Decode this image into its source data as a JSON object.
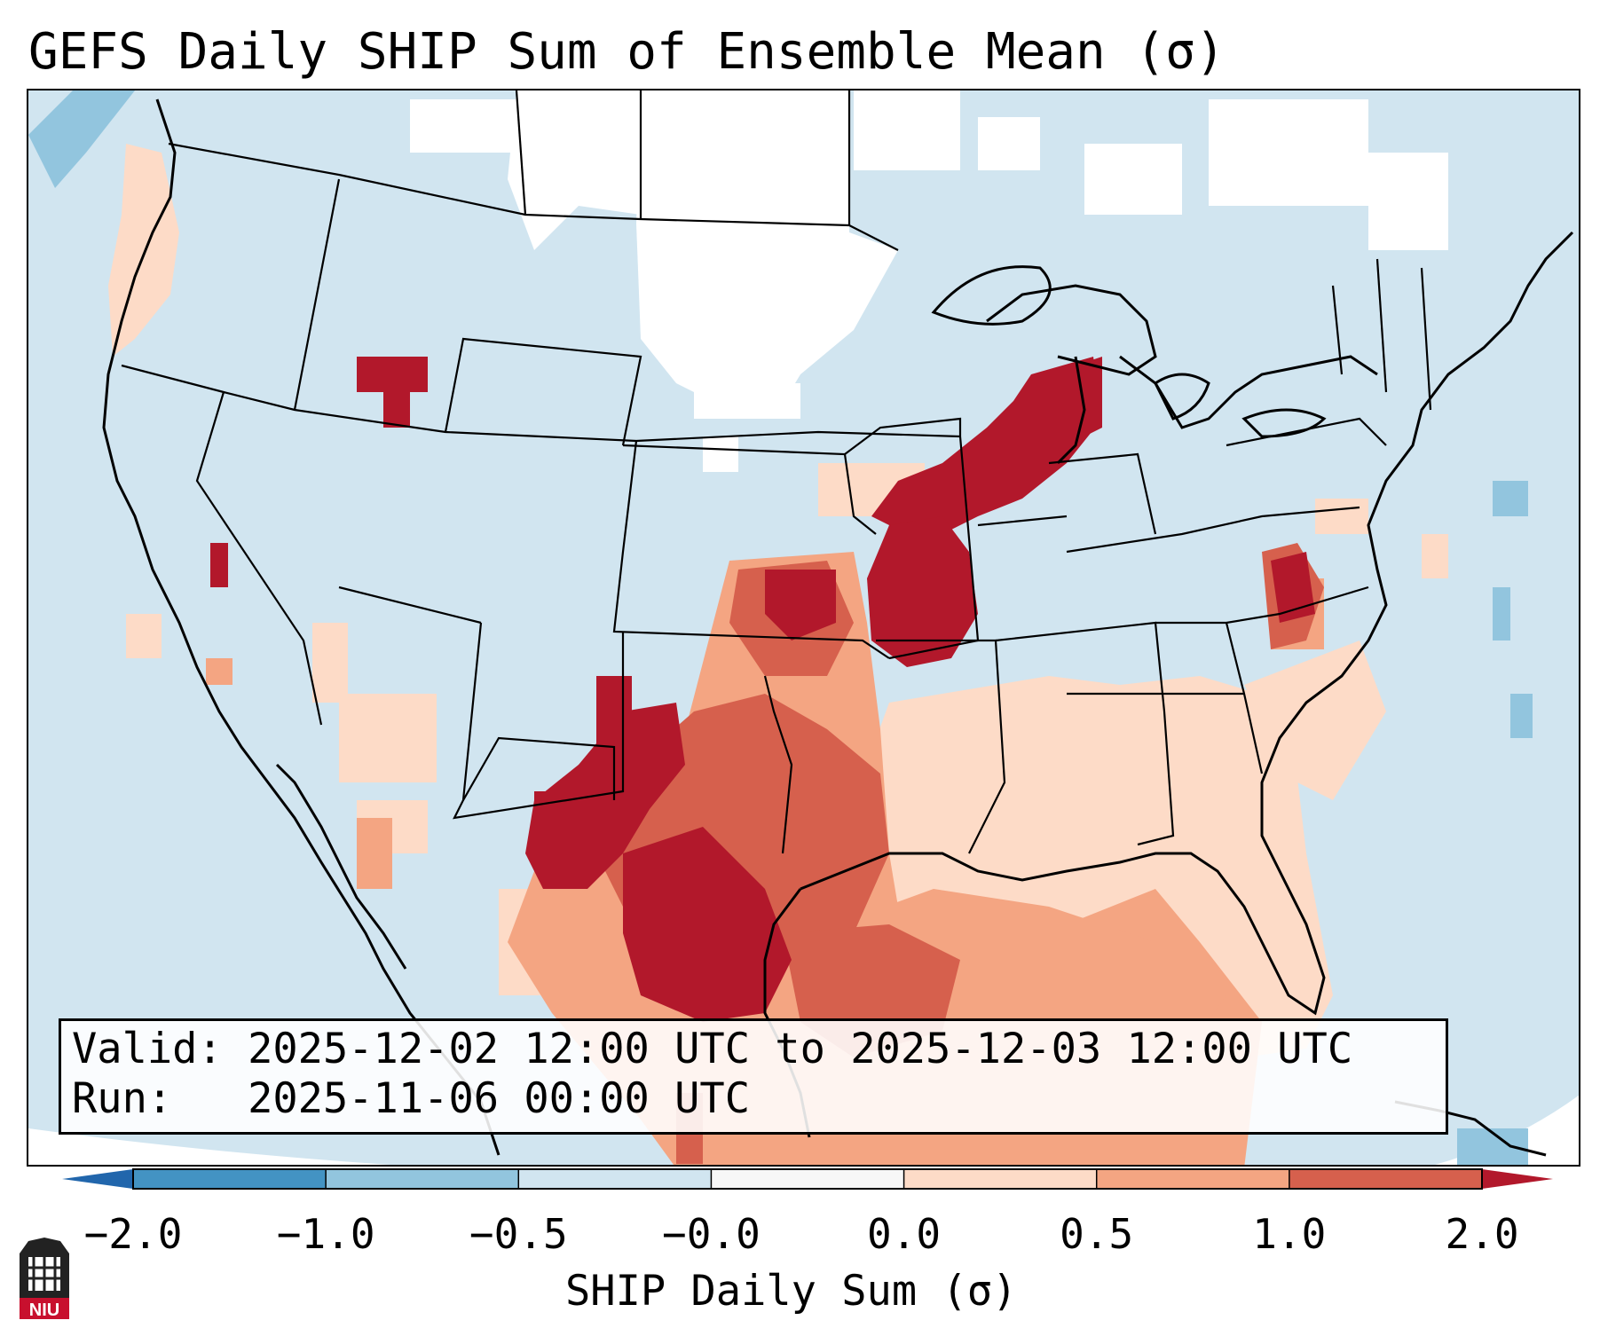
{
  "title": "GEFS Daily SHIP Sum of Ensemble Mean (σ)",
  "info": {
    "valid_label": "Valid:",
    "valid_value": "2025-12-02 12:00 UTC to 2025-12-03 12:00 UTC",
    "run_label": "Run:",
    "run_value": "2025-11-06 00:00 UTC"
  },
  "colorbar": {
    "label": "SHIP Daily Sum (σ)",
    "ticks": [
      "−2.0",
      "−1.0",
      "−0.5",
      "−0.0",
      "0.0",
      "0.5",
      "1.0",
      "2.0"
    ],
    "colors": [
      "#4393c3",
      "#92c5de",
      "#d1e5f0",
      "#f7f7f7",
      "#fddbc7",
      "#f4a582",
      "#d6604d",
      "#b2182b"
    ],
    "extend_low_color": "#2166ac",
    "extend_high_color": "#b2182b"
  },
  "map": {
    "background_color": "#d1e5f0",
    "neutral_color": "#ffffff",
    "line_color": "#000000"
  },
  "logo": {
    "text": "NIU",
    "color": "#c8102e"
  }
}
